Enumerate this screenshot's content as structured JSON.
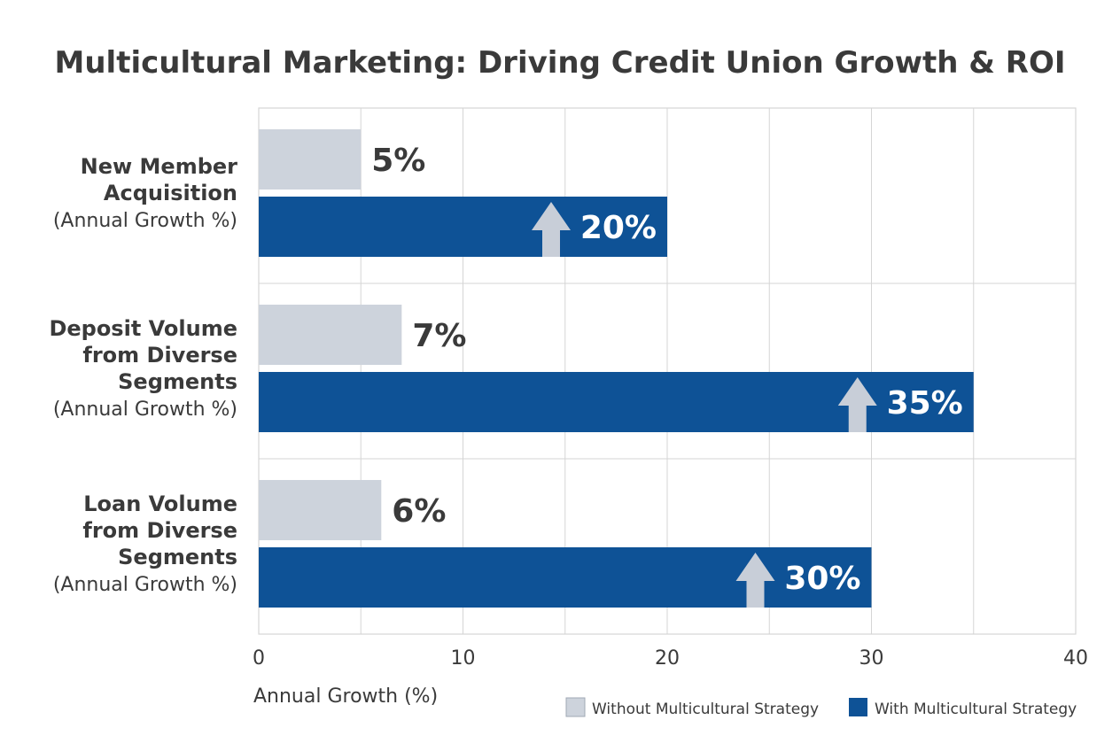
{
  "chart_data": {
    "type": "bar",
    "orientation": "horizontal",
    "title": "Multicultural Marketing: Driving Credit Union Growth & ROI",
    "xlabel": "Annual Growth (%)",
    "xlim": [
      0,
      40
    ],
    "xticks": [
      0,
      10,
      20,
      30,
      40
    ],
    "grid": true,
    "categories": [
      {
        "lines": [
          "New Member",
          "Acquisition"
        ],
        "sublabel": "(Annual Growth %)"
      },
      {
        "lines": [
          "Deposit Volume",
          "from Diverse",
          "Segments"
        ],
        "sublabel": "(Annual Growth %)"
      },
      {
        "lines": [
          "Loan Volume",
          "from Diverse",
          "Segments"
        ],
        "sublabel": "(Annual Growth %)"
      }
    ],
    "series": [
      {
        "name": "Without Multicultural Strategy",
        "values": [
          5,
          7,
          6
        ],
        "labels": [
          "5%",
          "7%",
          "6%"
        ],
        "color": "#cdd3dc"
      },
      {
        "name": "With Multicultural Strategy",
        "values": [
          20,
          35,
          30
        ],
        "labels": [
          "20%",
          "35%",
          "30%"
        ],
        "color": "#0e5296"
      }
    ],
    "legend_position": "bottom-right",
    "arrow_color": "#c8ced8",
    "text_color": "#3a3a3a",
    "grid_color": "#d5d5d5"
  }
}
